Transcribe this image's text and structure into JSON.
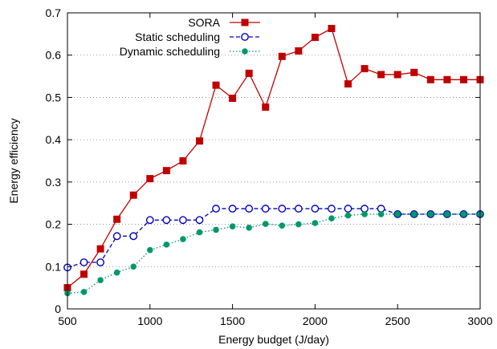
{
  "chart_data": {
    "type": "line",
    "title": "",
    "xlabel": "Energy budget (J/day)",
    "ylabel": "Energy efficiency",
    "xlim": [
      500,
      3000
    ],
    "ylim": [
      0,
      0.7
    ],
    "xticks": [
      "500",
      "1000",
      "1500",
      "2000",
      "2500",
      "3000"
    ],
    "yticks": [
      "0",
      "0.1",
      "0.2",
      "0.3",
      "0.4",
      "0.5",
      "0.6",
      "0.7"
    ],
    "grid": "horizontal dotted",
    "legend_position": "top-left",
    "x": [
      500,
      600,
      700,
      800,
      900,
      1000,
      1100,
      1200,
      1300,
      1400,
      1500,
      1600,
      1700,
      1800,
      1900,
      2000,
      2100,
      2200,
      2300,
      2400,
      2500,
      2600,
      2700,
      2800,
      2900,
      3000
    ],
    "series": [
      {
        "name": "SORA",
        "color": "#c00000",
        "marker": "filled-square",
        "line": "solid",
        "values": [
          0.05,
          0.082,
          0.142,
          0.212,
          0.269,
          0.308,
          0.327,
          0.35,
          0.397,
          0.529,
          0.498,
          0.557,
          0.477,
          0.597,
          0.61,
          0.642,
          0.663,
          0.532,
          0.568,
          0.554,
          0.554,
          0.559,
          0.542,
          0.542,
          0.542,
          0.542
        ]
      },
      {
        "name": "Static scheduling",
        "color": "#0000c0",
        "marker": "open-circle",
        "line": "dashed",
        "values": [
          0.098,
          0.11,
          0.11,
          0.172,
          0.172,
          0.21,
          0.21,
          0.21,
          0.21,
          0.237,
          0.237,
          0.237,
          0.237,
          0.237,
          0.237,
          0.237,
          0.237,
          0.237,
          0.237,
          0.237,
          0.224,
          0.224,
          0.224,
          0.224,
          0.224,
          0.224
        ]
      },
      {
        "name": "Dynamic scheduling",
        "color": "#009966",
        "marker": "filled-circle",
        "line": "dotted",
        "values": [
          0.037,
          0.04,
          0.068,
          0.086,
          0.1,
          0.139,
          0.152,
          0.165,
          0.181,
          0.187,
          0.195,
          0.192,
          0.201,
          0.197,
          0.2,
          0.203,
          0.214,
          0.221,
          0.224,
          0.224,
          0.224,
          0.224,
          0.224,
          0.224,
          0.224,
          0.224
        ]
      }
    ]
  }
}
